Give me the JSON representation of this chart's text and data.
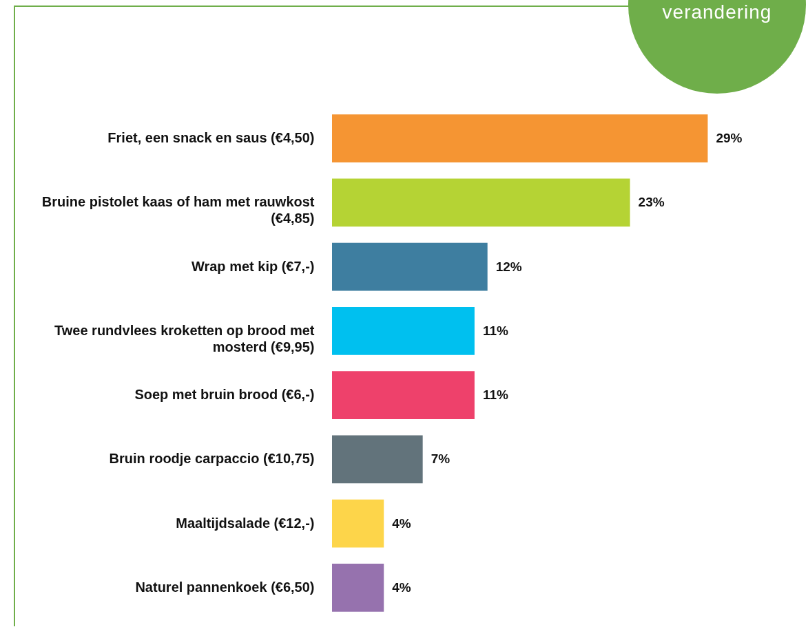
{
  "chart_data": {
    "type": "bar",
    "orientation": "horizontal",
    "categories": [
      "Friet, een snack en saus (€4,50)",
      "Bruine pistolet kaas of ham met rauwkost (€4,85)",
      "Wrap met kip (€7,-)",
      "Twee rundvlees kroketten op brood met mosterd (€9,95)",
      "Soep met bruin brood (€6,-)",
      "Bruin roodje carpaccio (€10,75)",
      "Maaltijdsalade (€12,-)",
      "Naturel pannenkoek (€6,50)"
    ],
    "values": [
      29,
      23,
      12,
      11,
      11,
      7,
      4,
      4
    ],
    "colors": [
      "#f59533",
      "#b5d334",
      "#3e7ea0",
      "#00c0ef",
      "#ee416b",
      "#62737b",
      "#fdd54a",
      "#9672ae"
    ],
    "value_labels": [
      "29%",
      "23%",
      "12%",
      "11%",
      "11%",
      "7%",
      "4%",
      "4%"
    ],
    "annotations": [
      "verandering"
    ]
  }
}
